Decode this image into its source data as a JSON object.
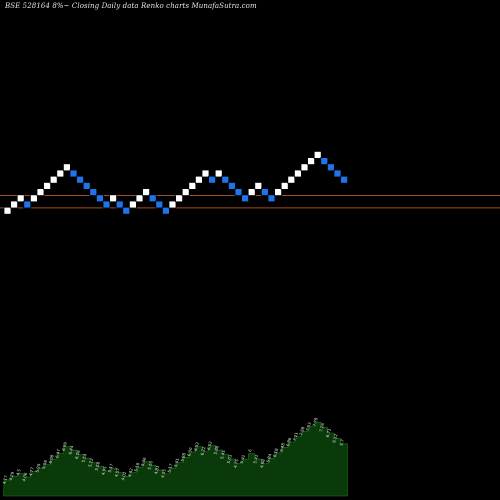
{
  "title": "BSE 528164  8%~   Closing Daily data  Renko  charts MunafaSutra.com",
  "colors": {
    "background": "#000000",
    "up_brick": "#ffffff",
    "down_brick": "#1e74e8",
    "brick_border": "#000000",
    "reference_line": "#a0501e",
    "volume_fill": "#0a3a0a",
    "volume_stroke": "#1c7a1c",
    "label": "#e0e0e0"
  },
  "chart_data": [
    {
      "type": "renko",
      "title": "BSE 528164  8%~   Closing Daily data  Renko  charts MunafaSutra.com",
      "grid": false,
      "reference_lines": [
        1.45,
        -0.55
      ],
      "bricks": [
        {
          "dir": "up",
          "level": -1
        },
        {
          "dir": "up",
          "level": 0
        },
        {
          "dir": "up",
          "level": 1
        },
        {
          "dir": "down",
          "level": 0
        },
        {
          "dir": "up",
          "level": 1
        },
        {
          "dir": "up",
          "level": 2
        },
        {
          "dir": "up",
          "level": 3
        },
        {
          "dir": "up",
          "level": 4
        },
        {
          "dir": "up",
          "level": 5
        },
        {
          "dir": "up",
          "level": 6
        },
        {
          "dir": "down",
          "level": 5
        },
        {
          "dir": "down",
          "level": 4
        },
        {
          "dir": "down",
          "level": 3
        },
        {
          "dir": "down",
          "level": 2
        },
        {
          "dir": "down",
          "level": 1
        },
        {
          "dir": "down",
          "level": 0
        },
        {
          "dir": "up",
          "level": 1
        },
        {
          "dir": "down",
          "level": 0
        },
        {
          "dir": "down",
          "level": -1
        },
        {
          "dir": "up",
          "level": 0
        },
        {
          "dir": "up",
          "level": 1
        },
        {
          "dir": "up",
          "level": 2
        },
        {
          "dir": "down",
          "level": 1
        },
        {
          "dir": "down",
          "level": 0
        },
        {
          "dir": "down",
          "level": -1
        },
        {
          "dir": "up",
          "level": 0
        },
        {
          "dir": "up",
          "level": 1
        },
        {
          "dir": "up",
          "level": 2
        },
        {
          "dir": "up",
          "level": 3
        },
        {
          "dir": "up",
          "level": 4
        },
        {
          "dir": "up",
          "level": 5
        },
        {
          "dir": "down",
          "level": 4
        },
        {
          "dir": "up",
          "level": 5
        },
        {
          "dir": "down",
          "level": 4
        },
        {
          "dir": "down",
          "level": 3
        },
        {
          "dir": "down",
          "level": 2
        },
        {
          "dir": "down",
          "level": 1
        },
        {
          "dir": "up",
          "level": 2
        },
        {
          "dir": "up",
          "level": 3
        },
        {
          "dir": "down",
          "level": 2
        },
        {
          "dir": "down",
          "level": 1
        },
        {
          "dir": "up",
          "level": 2
        },
        {
          "dir": "up",
          "level": 3
        },
        {
          "dir": "up",
          "level": 4
        },
        {
          "dir": "up",
          "level": 5
        },
        {
          "dir": "up",
          "level": 6
        },
        {
          "dir": "up",
          "level": 7
        },
        {
          "dir": "up",
          "level": 8
        },
        {
          "dir": "down",
          "level": 7
        },
        {
          "dir": "down",
          "level": 6
        },
        {
          "dir": "down",
          "level": 5
        },
        {
          "dir": "down",
          "level": 4
        }
      ],
      "volume": [
        18,
        22,
        25,
        21,
        27,
        31,
        35,
        41,
        47,
        55,
        51,
        46,
        42,
        37,
        33,
        28,
        31,
        26,
        22,
        26,
        32,
        38,
        34,
        29,
        25,
        31,
        37,
        43,
        49,
        55,
        50,
        56,
        51,
        46,
        41,
        36,
        41,
        47,
        41,
        36,
        42,
        48,
        54,
        60,
        66,
        72,
        77,
        82,
        76,
        70,
        64,
        58
      ],
      "volume_labels": [
        "4.17",
        "4.29",
        "4.5",
        "4.06",
        "4.77",
        "5.29",
        "5.58",
        "6.08",
        "6.47",
        "6.99",
        "6.44",
        "6.06",
        "5.54",
        "5.22",
        "5.58",
        "4.95",
        "5.17",
        "4.57",
        "4.02",
        "4.42",
        "5.18",
        "5.46",
        "5.16",
        "4.81",
        "4.55",
        "5.17",
        "5.41",
        "5.88",
        "6.30",
        "6.52",
        "6.22",
        "6.52",
        "5.88",
        "5.45",
        "5.03",
        "4.75",
        "5.41",
        "6",
        "5.41",
        "4.98",
        "5.84",
        "6.18",
        "6.48",
        "6.86",
        "7.11",
        "7.38",
        "7.53",
        "7.78",
        "7.26",
        "6.71",
        "6.12",
        "5.7"
      ]
    }
  ]
}
